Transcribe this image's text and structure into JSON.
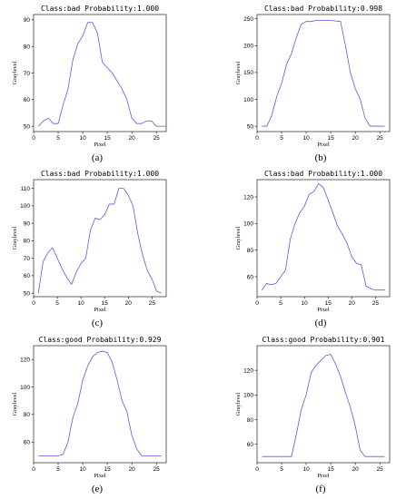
{
  "figure": {
    "line_color": "#5b5bea"
  },
  "chart_data": [
    {
      "type": "line",
      "title": "Class:bad Probability:1.000",
      "caption": "(a)",
      "xlabel": "Pixel",
      "ylabel": "Graylevel",
      "xlim": [
        0,
        27
      ],
      "ylim": [
        48,
        92
      ],
      "xticks": [
        0,
        5,
        10,
        15,
        20,
        25
      ],
      "yticks": [
        50,
        60,
        70,
        80,
        90
      ],
      "x": [
        1,
        2,
        3,
        4,
        5,
        6,
        7,
        8,
        9,
        10,
        11,
        12,
        13,
        14,
        15,
        16,
        17,
        18,
        19,
        20,
        21,
        22,
        23,
        24,
        25,
        26,
        27
      ],
      "y": [
        50,
        52,
        53,
        51,
        51,
        58,
        64,
        75,
        81,
        84,
        89,
        89,
        85,
        74,
        72,
        70,
        67,
        64,
        60,
        53,
        51,
        51,
        52,
        52,
        50,
        50,
        50
      ]
    },
    {
      "type": "line",
      "title": "Class:bad Probability:0.998",
      "caption": "(b)",
      "xlabel": "Pixel",
      "ylabel": "Graylevel",
      "xlim": [
        0,
        27
      ],
      "ylim": [
        40,
        258
      ],
      "xticks": [
        0,
        5,
        10,
        15,
        20,
        25
      ],
      "yticks": [
        50,
        100,
        150,
        200,
        250
      ],
      "x": [
        1,
        2,
        3,
        4,
        5,
        6,
        7,
        8,
        9,
        10,
        11,
        12,
        13,
        14,
        15,
        16,
        17,
        18,
        19,
        20,
        21,
        22,
        23,
        24,
        25,
        26
      ],
      "y": [
        50,
        50,
        70,
        105,
        130,
        165,
        185,
        215,
        240,
        245,
        245,
        247,
        247,
        247,
        247,
        246,
        245,
        200,
        150,
        120,
        100,
        65,
        50,
        50,
        50,
        50
      ]
    },
    {
      "type": "line",
      "title": "Class:bad Probability:1.000",
      "caption": "(c)",
      "xlabel": "Pixel",
      "ylabel": "Graylevel",
      "xlim": [
        0,
        28
      ],
      "ylim": [
        48,
        115
      ],
      "xticks": [
        0,
        5,
        10,
        15,
        20,
        25
      ],
      "yticks": [
        50,
        60,
        70,
        80,
        90,
        100,
        110
      ],
      "x": [
        1,
        2,
        3,
        4,
        5,
        6,
        7,
        8,
        9,
        10,
        11,
        12,
        13,
        14,
        15,
        16,
        17,
        18,
        19,
        20,
        21,
        22,
        23,
        24,
        25,
        26,
        27
      ],
      "y": [
        50,
        68,
        73,
        76,
        70,
        64,
        59,
        55,
        62,
        67,
        70,
        86,
        93,
        92,
        95,
        101,
        101,
        110,
        110,
        106,
        100,
        84,
        72,
        63,
        58,
        51,
        50
      ]
    },
    {
      "type": "line",
      "title": "Class:bad Probability:1.000",
      "caption": "(d)",
      "xlabel": "Pixel",
      "ylabel": "Graylevel",
      "xlim": [
        0,
        28
      ],
      "ylim": [
        45,
        133
      ],
      "xticks": [
        0,
        5,
        10,
        15,
        20,
        25
      ],
      "yticks": [
        60,
        80,
        100,
        120
      ],
      "x": [
        1,
        2,
        3,
        4,
        5,
        6,
        7,
        8,
        9,
        10,
        11,
        12,
        13,
        14,
        15,
        16,
        17,
        18,
        19,
        20,
        21,
        22,
        23,
        24,
        25,
        26,
        27
      ],
      "y": [
        50,
        55,
        54,
        55,
        60,
        65,
        88,
        100,
        108,
        113,
        122,
        124,
        130,
        127,
        118,
        108,
        98,
        92,
        85,
        75,
        70,
        69,
        53,
        51,
        50,
        50,
        50
      ]
    },
    {
      "type": "line",
      "title": "Class:good Probability:0.929",
      "caption": "(e)",
      "xlabel": "Pixel",
      "ylabel": "Graylevel",
      "xlim": [
        0,
        27
      ],
      "ylim": [
        45,
        130
      ],
      "xticks": [
        0,
        5,
        10,
        15,
        20,
        25
      ],
      "yticks": [
        60,
        80,
        100,
        120
      ],
      "x": [
        1,
        2,
        3,
        4,
        5,
        6,
        7,
        8,
        9,
        10,
        11,
        12,
        13,
        14,
        15,
        16,
        17,
        18,
        19,
        20,
        21,
        22,
        23,
        24,
        25,
        26
      ],
      "y": [
        50,
        50,
        50,
        50,
        50,
        51,
        60,
        78,
        88,
        105,
        115,
        122,
        125,
        126,
        125,
        118,
        105,
        90,
        82,
        65,
        55,
        50,
        50,
        50,
        50,
        50
      ]
    },
    {
      "type": "line",
      "title": "Class:good Probability:0.901",
      "caption": "(f)",
      "xlabel": "Pixel",
      "ylabel": "Graylevel",
      "xlim": [
        0,
        27
      ],
      "ylim": [
        45,
        140
      ],
      "xticks": [
        0,
        5,
        10,
        15,
        20,
        25
      ],
      "yticks": [
        60,
        80,
        100,
        120
      ],
      "x": [
        1,
        2,
        3,
        4,
        5,
        6,
        7,
        8,
        9,
        10,
        11,
        12,
        13,
        14,
        15,
        16,
        17,
        18,
        19,
        20,
        21,
        22,
        23,
        24,
        25,
        26
      ],
      "y": [
        50,
        50,
        50,
        50,
        50,
        50,
        50,
        68,
        88,
        100,
        118,
        124,
        128,
        132,
        133,
        125,
        115,
        102,
        90,
        75,
        55,
        50,
        50,
        50,
        50,
        50
      ]
    }
  ]
}
